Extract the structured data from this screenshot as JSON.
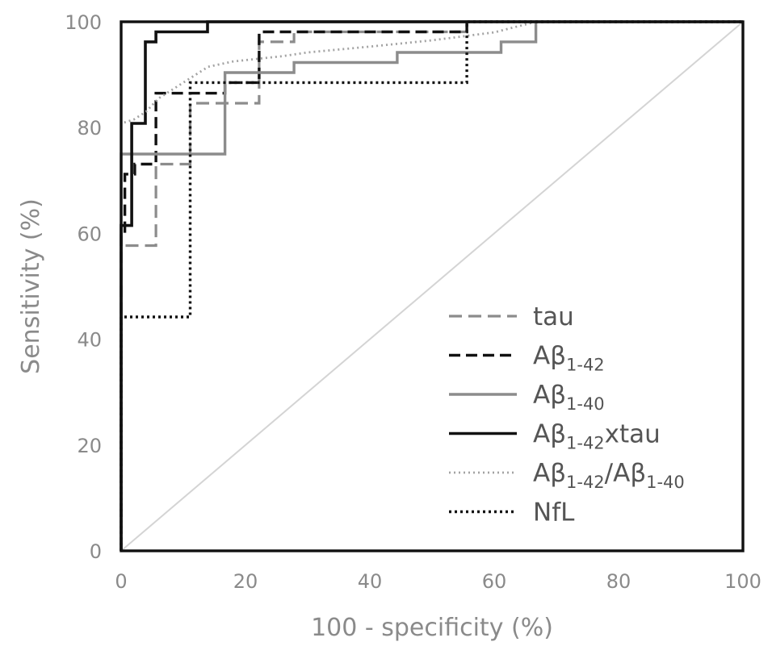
{
  "chart_data": {
    "type": "line",
    "xlabel": "100 - specificity (%)",
    "ylabel": "Sensitivity (%)",
    "xlim": [
      0,
      100
    ],
    "ylim": [
      0,
      100
    ],
    "x_ticks": [
      "0",
      "20",
      "40",
      "60",
      "80",
      "100"
    ],
    "y_ticks": [
      "0",
      "20",
      "40",
      "60",
      "80",
      "100"
    ],
    "grid": false,
    "legend_position": "lower-right",
    "reference_line": {
      "x": [
        0,
        100
      ],
      "y": [
        0,
        100
      ],
      "color": "#d4d4d4"
    },
    "series": [
      {
        "name": "tau",
        "label_parts": [
          [
            "tau",
            false
          ]
        ],
        "color": "#8c8c8c",
        "dash": "16,8",
        "width": 3.2,
        "x": [
          0,
          0,
          0.3,
          0.3,
          5.6,
          5.6,
          11.1,
          11.1,
          16.7,
          16.7,
          22.2,
          22.2,
          27.8,
          27.8,
          55.6,
          55.6
        ],
        "y": [
          0,
          57.7,
          57.7,
          57.7,
          57.7,
          73.1,
          73.1,
          84.6,
          84.6,
          84.6,
          84.6,
          96.2,
          96.2,
          98.1,
          98.1,
          100
        ]
      },
      {
        "name": "Aβ1-42",
        "label_parts": [
          [
            "Aβ",
            false
          ],
          [
            "1-42",
            true
          ]
        ],
        "color": "#111111",
        "dash": "14,7",
        "width": 3.4,
        "x": [
          0,
          0,
          0.6,
          0.6,
          2.2,
          2.2,
          5.6,
          5.6,
          11.1,
          11.1,
          16.7,
          16.7,
          22.2,
          22.2,
          55.6,
          55.6
        ],
        "y": [
          0,
          59.6,
          59.6,
          71.2,
          71.2,
          73.1,
          73.1,
          86.5,
          86.5,
          86.5,
          86.5,
          88.5,
          88.5,
          98.1,
          98.1,
          100
        ]
      },
      {
        "name": "Aβ1-40",
        "label_parts": [
          [
            "Aβ",
            false
          ],
          [
            "1-40",
            true
          ]
        ],
        "color": "#8c8c8c",
        "dash": "",
        "width": 3.4,
        "x": [
          0,
          0,
          16.7,
          16.7,
          27.8,
          27.8,
          44.4,
          44.4,
          61.1,
          61.1,
          66.7,
          66.7
        ],
        "y": [
          0,
          75,
          75,
          90.4,
          90.4,
          92.3,
          92.3,
          94.2,
          94.2,
          96.2,
          96.2,
          100
        ]
      },
      {
        "name": "Aβ1-42xtau",
        "label_parts": [
          [
            "Aβ",
            false
          ],
          [
            "1-42",
            true
          ],
          [
            "xtau",
            false
          ]
        ],
        "color": "#111111",
        "dash": "",
        "width": 3.6,
        "x": [
          0,
          0,
          1.7,
          1.7,
          3.9,
          3.9,
          5.6,
          5.6,
          13.9,
          13.9,
          100
        ],
        "y": [
          0,
          61.5,
          61.5,
          80.8,
          80.8,
          96.2,
          96.2,
          98.1,
          98.1,
          100,
          100
        ]
      },
      {
        "name": "Aβ1-42/Aβ1-40",
        "label_parts": [
          [
            "Aβ",
            false
          ],
          [
            "1-42",
            true
          ],
          [
            "/Aβ",
            false
          ],
          [
            "1-40",
            true
          ]
        ],
        "color": "#a3a3a3",
        "dash": "2,4",
        "width": 2.8,
        "x": [
          0,
          0,
          2,
          4,
          6,
          8,
          10,
          14,
          18,
          22,
          26,
          30,
          40,
          50,
          60,
          66.7
        ],
        "y": [
          0,
          80.8,
          81.5,
          83,
          85.5,
          87,
          88.5,
          91.5,
          92.5,
          93,
          93.5,
          94.2,
          95.3,
          96.5,
          98,
          100
        ]
      },
      {
        "name": "NfL",
        "label_parts": [
          [
            "NfL",
            false
          ]
        ],
        "color": "#111111",
        "dash": "3,4",
        "width": 3.4,
        "x": [
          0,
          0,
          0.4,
          0.4,
          11.1,
          11.1,
          55.6,
          55.6,
          100
        ],
        "y": [
          0,
          44.2,
          44.2,
          44.2,
          44.2,
          88.5,
          88.5,
          100,
          100
        ]
      }
    ]
  }
}
